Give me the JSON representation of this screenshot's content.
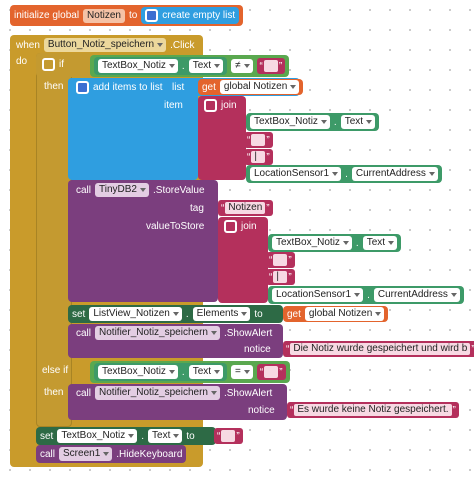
{
  "symbols": {
    "dot": ".",
    "quote_open": "“",
    "quote_close": "”",
    "not_equal": "≠",
    "equal": "="
  },
  "init": {
    "label": "initialize global",
    "name": "Notizen",
    "to": "to",
    "value": "create empty list"
  },
  "event": {
    "when": "when",
    "component": "Button_Notiz_speichern",
    "event": ".Click",
    "do": "do"
  },
  "if_block": {
    "if": "if",
    "then": "then",
    "else_if": "else if",
    "then2": "then"
  },
  "textbox": {
    "component": "TextBox_Notiz",
    "property": "Text"
  },
  "location": {
    "component": "LocationSensor1",
    "property": "CurrentAddress"
  },
  "get_global": {
    "get": "get",
    "name": "global Notizen"
  },
  "add_items": {
    "label": "add items to list",
    "list": "list",
    "item": "item"
  },
  "join": {
    "label": "join",
    "separator": " ",
    "pipe": "|"
  },
  "store": {
    "call": "call",
    "component": "TinyDB2",
    "method": ".StoreValue",
    "tag": "tag",
    "tag_value": "Notizen",
    "value_to_store": "valueToStore"
  },
  "set_list": {
    "set": "set",
    "component": "ListView_Notizen",
    "property": "Elements",
    "to": "to"
  },
  "alert_saved": {
    "call": "call",
    "component": "Notifier_Notiz_speichern",
    "method": ".ShowAlert",
    "notice": "notice",
    "text": "Die Notiz wurde gespeichert und wird b"
  },
  "alert_empty": {
    "call": "call",
    "component": "Notifier_Notiz_speichern",
    "method": ".ShowAlert",
    "notice": "notice",
    "text": "Es wurde keine Notiz gespeichert."
  },
  "set_text": {
    "set": "set",
    "to": "to"
  },
  "hide": {
    "call": "call",
    "component": "Screen1",
    "method": ".HideKeyboard"
  }
}
